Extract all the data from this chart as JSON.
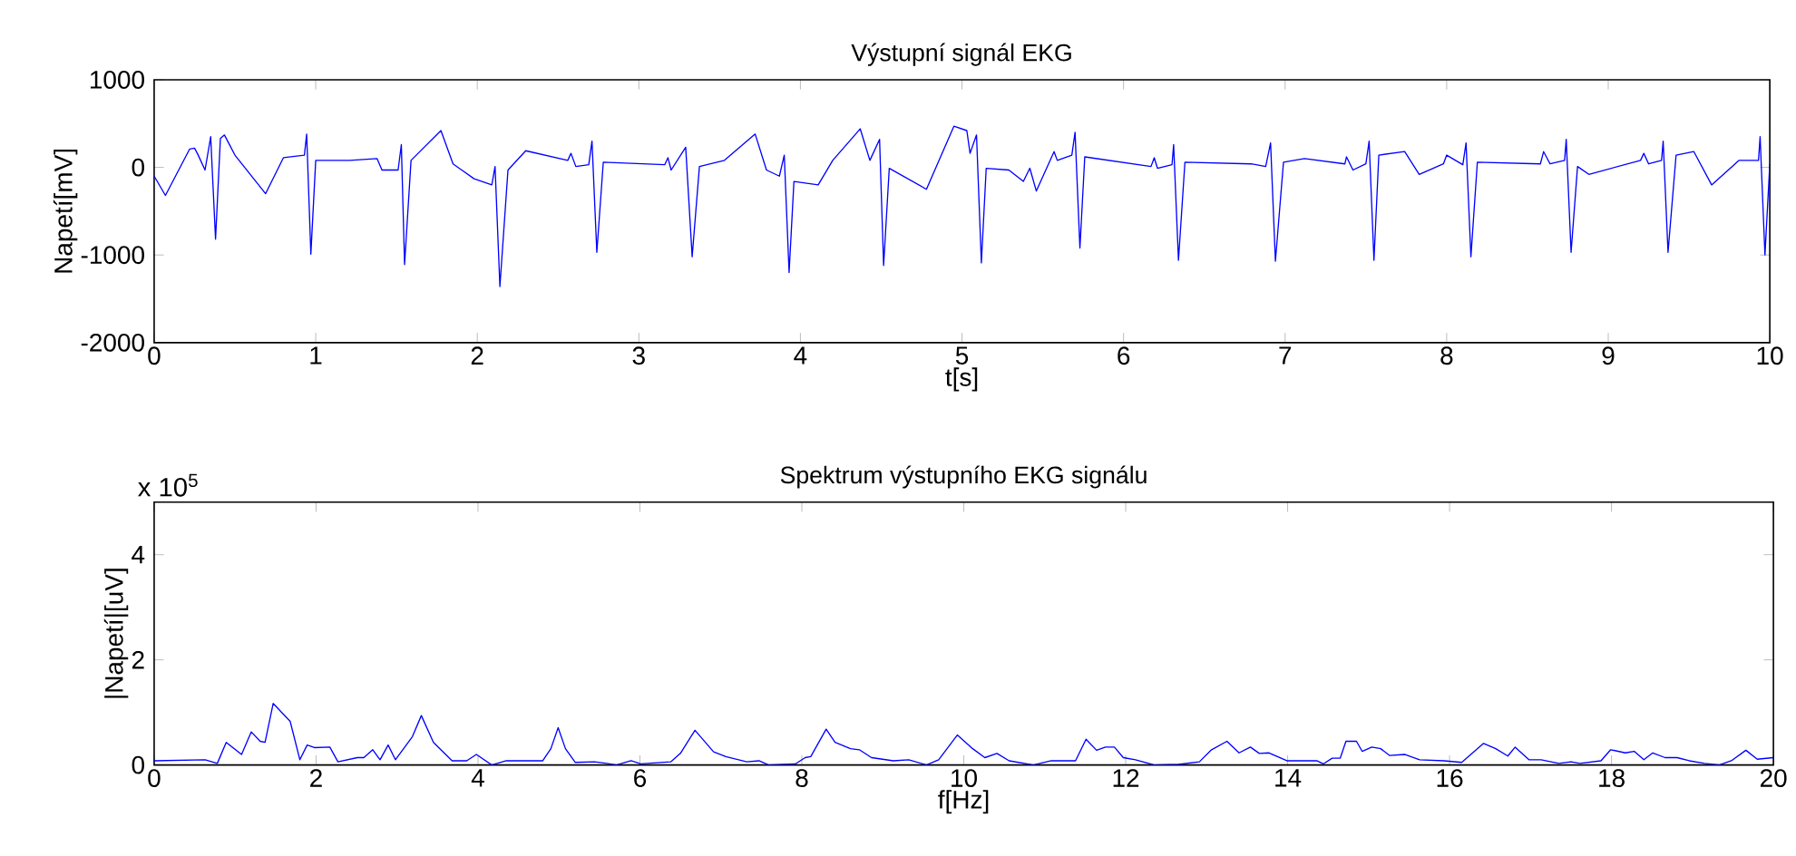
{
  "chart_data": [
    {
      "type": "line",
      "title": "Výstupní signál EKG",
      "xlabel": "t[s]",
      "ylabel": "Napetí[mV]",
      "xlim": [
        0,
        10
      ],
      "ylim": [
        -2000,
        1000
      ],
      "xticks": [
        0,
        1,
        2,
        3,
        4,
        5,
        6,
        7,
        8,
        9,
        10
      ],
      "yticks": [
        -2000,
        -1000,
        0,
        1000
      ],
      "series": [
        {
          "color": "#0000ff",
          "x": [
            0,
            0.07,
            0.22,
            0.25,
            0.27,
            0.315,
            0.35,
            0.38,
            0.41,
            0.435,
            0.5,
            0.69,
            0.8,
            0.93,
            0.944,
            0.97,
            1.0,
            1.21,
            1.38,
            1.41,
            1.51,
            1.53,
            1.55,
            1.59,
            1.775,
            1.85,
            1.98,
            2.09,
            2.11,
            2.14,
            2.19,
            2.3,
            2.56,
            2.58,
            2.61,
            2.69,
            2.71,
            2.74,
            2.78,
            3.16,
            3.18,
            3.2,
            3.29,
            3.33,
            3.375,
            3.53,
            3.72,
            3.79,
            3.87,
            3.9,
            3.93,
            3.96,
            4.11,
            4.2,
            4.37,
            4.43,
            4.49,
            4.515,
            4.55,
            4.78,
            4.95,
            5.03,
            5.05,
            5.09,
            5.12,
            5.15,
            5.29,
            5.38,
            5.42,
            5.46,
            5.57,
            5.59,
            5.68,
            5.7,
            5.73,
            5.76,
            6.17,
            6.19,
            6.21,
            6.3,
            6.31,
            6.34,
            6.38,
            6.79,
            6.88,
            6.91,
            6.94,
            6.99,
            7.12,
            7.37,
            7.38,
            7.42,
            7.5,
            7.52,
            7.55,
            7.58,
            7.74,
            7.83,
            7.98,
            8.0,
            8.1,
            8.12,
            8.15,
            8.19,
            8.58,
            8.6,
            8.64,
            8.73,
            8.74,
            8.77,
            8.81,
            8.88,
            9.2,
            9.22,
            9.25,
            9.33,
            9.34,
            9.37,
            9.42,
            9.53,
            9.64,
            9.81,
            9.93,
            9.94,
            9.97,
            10.0
          ],
          "values": [
            -100,
            -320,
            210,
            220,
            150,
            -30,
            350,
            -820,
            330,
            370,
            140,
            -300,
            110,
            140,
            380,
            -990,
            80,
            80,
            100,
            -30,
            -30,
            260,
            -1110,
            80,
            420,
            40,
            -130,
            -200,
            10,
            -1360,
            -30,
            190,
            80,
            160,
            10,
            30,
            300,
            -970,
            60,
            30,
            110,
            -30,
            230,
            -1020,
            10,
            80,
            380,
            -30,
            -100,
            140,
            -1200,
            -160,
            -200,
            80,
            440,
            80,
            320,
            -1120,
            -10,
            -250,
            470,
            420,
            160,
            370,
            -1090,
            -10,
            -30,
            -160,
            -10,
            -270,
            180,
            80,
            140,
            400,
            -920,
            120,
            10,
            110,
            -10,
            30,
            260,
            -1060,
            60,
            40,
            10,
            280,
            -1070,
            60,
            100,
            40,
            120,
            -30,
            40,
            300,
            -1060,
            140,
            180,
            -80,
            40,
            140,
            30,
            280,
            -1020,
            60,
            40,
            180,
            40,
            80,
            320,
            -970,
            10,
            -80,
            80,
            160,
            40,
            80,
            300,
            -970,
            140,
            180,
            -200,
            80,
            80,
            350,
            -1000,
            40
          ]
        }
      ]
    },
    {
      "type": "line",
      "title": "Spektrum výstupního EKG signálu",
      "xlabel": "f[Hz]",
      "ylabel": "|Napetí|[uV]",
      "annotations": [
        "x 10$^{5}$"
      ],
      "xlim": [
        0,
        20
      ],
      "ylim": [
        0,
        5
      ],
      "xticks": [
        0,
        2,
        4,
        6,
        8,
        10,
        12,
        14,
        16,
        18,
        20
      ],
      "yticks": [
        0,
        2,
        4
      ],
      "series": [
        {
          "color": "#0000ff",
          "x": [
            0,
            0.63,
            0.78,
            0.89,
            1.08,
            1.2,
            1.31,
            1.37,
            1.47,
            1.68,
            1.8,
            1.89,
            1.98,
            2.17,
            2.27,
            2.51,
            2.59,
            2.7,
            2.79,
            2.89,
            2.98,
            3.19,
            3.3,
            3.45,
            3.68,
            3.86,
            3.98,
            4.17,
            4.35,
            4.8,
            4.9,
            4.99,
            5.08,
            5.2,
            5.44,
            5.59,
            5.71,
            5.89,
            6.01,
            6.38,
            6.5,
            6.68,
            6.91,
            7.06,
            7.32,
            7.47,
            7.59,
            7.92,
            8.04,
            8.11,
            8.3,
            8.41,
            8.6,
            8.71,
            8.86,
            9.13,
            9.32,
            9.54,
            9.69,
            9.92,
            10.11,
            10.26,
            10.41,
            10.56,
            10.86,
            11.08,
            11.38,
            11.51,
            11.64,
            11.75,
            11.86,
            11.97,
            12.12,
            12.35,
            12.65,
            12.91,
            13.06,
            13.25,
            13.4,
            13.54,
            13.65,
            13.77,
            13.99,
            14.36,
            14.44,
            14.55,
            14.65,
            14.72,
            14.85,
            14.92,
            15.04,
            15.15,
            15.26,
            15.45,
            15.63,
            15.93,
            16.15,
            16.42,
            16.57,
            16.72,
            16.81,
            16.98,
            17.13,
            17.35,
            17.5,
            17.61,
            17.87,
            17.99,
            18.17,
            18.28,
            18.4,
            18.51,
            18.66,
            18.81,
            18.96,
            19.15,
            19.33,
            19.48,
            19.66,
            19.8,
            20.0
          ],
          "values": [
            0.08,
            0.1,
            0.03,
            0.43,
            0.2,
            0.63,
            0.45,
            0.43,
            1.17,
            0.83,
            0.1,
            0.38,
            0.33,
            0.34,
            0.06,
            0.14,
            0.14,
            0.29,
            0.1,
            0.38,
            0.1,
            0.54,
            0.94,
            0.43,
            0.08,
            0.08,
            0.2,
            0,
            0.08,
            0.08,
            0.31,
            0.71,
            0.31,
            0.05,
            0.06,
            0.03,
            0,
            0.08,
            0.02,
            0.06,
            0.22,
            0.66,
            0.25,
            0.16,
            0.06,
            0.08,
            0,
            0.02,
            0.14,
            0.16,
            0.68,
            0.43,
            0.31,
            0.29,
            0.14,
            0.08,
            0.1,
            0,
            0.1,
            0.57,
            0.31,
            0.14,
            0.22,
            0.08,
            0,
            0.08,
            0.08,
            0.49,
            0.28,
            0.34,
            0.34,
            0.14,
            0.1,
            0,
            0.01,
            0.06,
            0.29,
            0.45,
            0.23,
            0.34,
            0.22,
            0.23,
            0.08,
            0.08,
            0.02,
            0.13,
            0.13,
            0.45,
            0.45,
            0.26,
            0.34,
            0.31,
            0.18,
            0.2,
            0.1,
            0.08,
            0.05,
            0.41,
            0.31,
            0.17,
            0.34,
            0.1,
            0.1,
            0.03,
            0.06,
            0.03,
            0.08,
            0.29,
            0.23,
            0.26,
            0.1,
            0.23,
            0.14,
            0.14,
            0.08,
            0.03,
            0,
            0.08,
            0.28,
            0.11,
            0.14
          ]
        }
      ]
    }
  ]
}
